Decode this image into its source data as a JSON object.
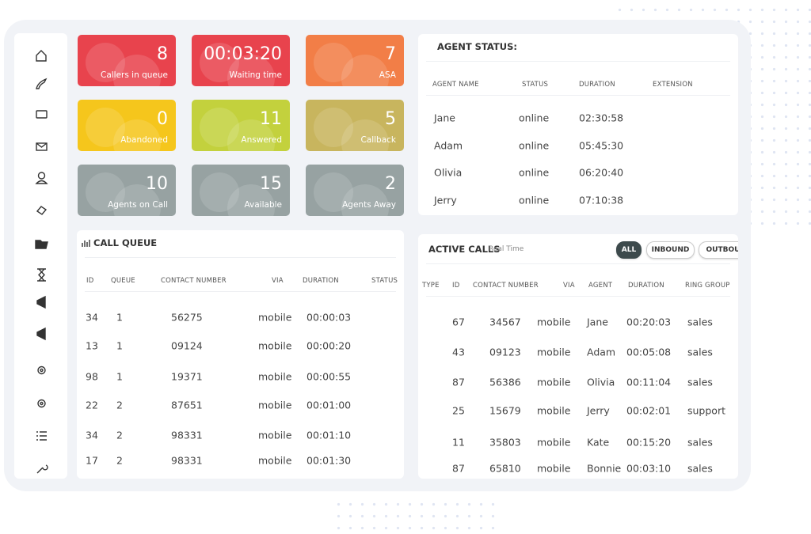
{
  "tiles": [
    {
      "value": 8,
      "label": "Callers in queue",
      "color": "#e8434d"
    },
    {
      "value": "00:03:20",
      "label": "Waiting time",
      "color": "#e8434d"
    },
    {
      "value": 7,
      "label": "ASA",
      "color": "#f27e47"
    },
    {
      "value": 0,
      "label": "Abandoned",
      "color": "#f5c61c"
    },
    {
      "value": 11,
      "label": "Answered",
      "color": "#c3d13d"
    },
    {
      "value": 5,
      "label": "Callback",
      "color": "#c8b55e"
    },
    {
      "value": 10,
      "label": "Agents on Call",
      "color": "#97a2a2"
    },
    {
      "value": 15,
      "label": "Available",
      "color": "#97a2a2"
    },
    {
      "value": 2,
      "label": "Agents Away",
      "color": "#97a2a2"
    }
  ],
  "agent_status": {
    "title": "AGENT STATUS:",
    "columns": [
      "AGENT NAME",
      "STATUS",
      "DURATION",
      "EXTENSION"
    ],
    "rows": [
      [
        "Jane",
        "online",
        "02:30:58"
      ],
      [
        "Adam",
        "online",
        "05:45:30"
      ],
      [
        "Olivia",
        "online",
        "06:20:40"
      ],
      [
        "Jerry",
        "online",
        "07:10:38"
      ]
    ]
  },
  "call_queue": {
    "title": "CALL QUEUE",
    "columns": [
      "ID",
      "QUEUE",
      "CONTACT NUMBER",
      "VIA",
      "DURATION",
      "STATUS"
    ],
    "rows": [
      [
        34,
        1,
        "56275",
        "mobile",
        "00:00:03"
      ],
      [
        13,
        1,
        "09124",
        "mobile",
        "00:00:20"
      ],
      [
        98,
        1,
        "19371",
        "mobile",
        "00:00:55"
      ],
      [
        22,
        2,
        "87651",
        "mobile",
        "00:01:00"
      ],
      [
        34,
        2,
        "98331",
        "mobile",
        "00:01:10"
      ],
      [
        17,
        2,
        "98331",
        "mobile",
        "00:01:30"
      ]
    ]
  },
  "active_calls": {
    "title": "ACTIVE CALLS",
    "subtitle": "Real Time",
    "filters": [
      "ALL",
      "INBOUND",
      "OUTBOU"
    ],
    "columns": [
      "TYPE",
      "ID",
      "CONTACT NUMBER",
      "VIA",
      "AGENT",
      "DURATION",
      "RING GROUP"
    ],
    "rows": [
      [
        67,
        "34567",
        "mobile",
        "Jane",
        "00:20:03",
        "sales"
      ],
      [
        43,
        "09123",
        "mobile",
        "Adam",
        "00:05:08",
        "sales"
      ],
      [
        87,
        "56386",
        "mobile",
        "Olivia",
        "00:11:04",
        "sales"
      ],
      [
        25,
        "15679",
        "mobile",
        "Jerry",
        "00:02:01",
        "support"
      ],
      [
        11,
        "35803",
        "mobile",
        "Kate",
        "00:15:20",
        "sales"
      ],
      [
        87,
        "65810",
        "mobile",
        "Bonnie",
        "00:03:10",
        "sales"
      ]
    ]
  }
}
